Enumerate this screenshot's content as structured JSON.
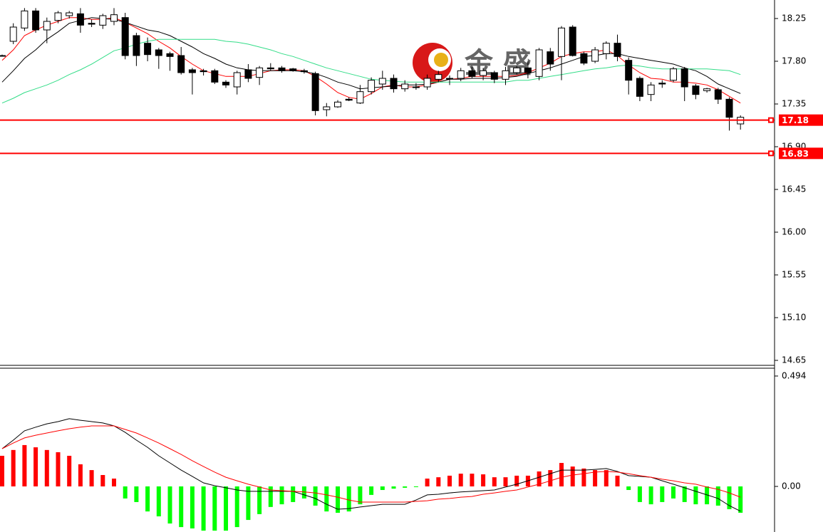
{
  "watermark": "金 盛",
  "chart_data": [
    {
      "type": "candlestick",
      "open": [
        17.86,
        18.01,
        18.15,
        18.33,
        18.13,
        18.23,
        18.28,
        18.3,
        18.2,
        18.18,
        18.22,
        18.26,
        18.07,
        17.99,
        17.92,
        17.88,
        17.86,
        17.71,
        17.7,
        17.7,
        17.58,
        17.53,
        17.71,
        17.63,
        17.73,
        17.73,
        17.72,
        17.7,
        17.67,
        17.29,
        17.32,
        17.4,
        17.36,
        17.48,
        17.56,
        17.62,
        17.51,
        17.53,
        17.53,
        17.61,
        17.62,
        17.62,
        17.7,
        17.65,
        17.68,
        17.61,
        17.68,
        17.73,
        17.64,
        17.9,
        17.85,
        18.16,
        17.88,
        17.8,
        17.88,
        17.99,
        17.81,
        17.62,
        17.45,
        17.57,
        17.6,
        17.72,
        17.54,
        17.49,
        17.5,
        17.4,
        17.14
      ],
      "high": [
        17.87,
        18.2,
        18.36,
        18.36,
        18.26,
        18.33,
        18.33,
        18.36,
        18.24,
        18.3,
        18.36,
        18.31,
        18.1,
        18.05,
        17.94,
        17.9,
        17.95,
        17.73,
        17.72,
        17.72,
        17.6,
        17.7,
        17.77,
        17.75,
        17.78,
        17.75,
        17.73,
        17.72,
        17.69,
        17.36,
        17.39,
        17.42,
        17.55,
        17.63,
        17.7,
        17.66,
        17.6,
        17.57,
        17.66,
        17.7,
        17.65,
        17.73,
        17.74,
        17.73,
        17.7,
        17.74,
        17.75,
        17.8,
        17.94,
        17.94,
        18.17,
        18.18,
        17.9,
        17.95,
        18.01,
        18.08,
        17.84,
        17.64,
        17.58,
        17.6,
        17.74,
        17.74,
        17.56,
        17.52,
        17.52,
        17.42,
        17.23
      ],
      "low": [
        17.85,
        17.98,
        18.12,
        18.1,
        17.99,
        18.2,
        18.25,
        18.1,
        18.16,
        18.14,
        18.18,
        17.82,
        17.75,
        17.8,
        17.72,
        17.7,
        17.66,
        17.45,
        17.65,
        17.56,
        17.52,
        17.45,
        17.58,
        17.55,
        17.7,
        17.68,
        17.69,
        17.67,
        17.23,
        17.22,
        17.31,
        17.38,
        17.35,
        17.45,
        17.5,
        17.47,
        17.48,
        17.5,
        17.5,
        17.58,
        17.55,
        17.59,
        17.62,
        17.6,
        17.57,
        17.55,
        17.66,
        17.62,
        17.6,
        17.7,
        17.6,
        17.85,
        17.76,
        17.78,
        17.82,
        17.8,
        17.45,
        17.38,
        17.38,
        17.52,
        17.58,
        17.38,
        17.4,
        17.47,
        17.35,
        17.07,
        17.08
      ],
      "close": [
        17.86,
        18.16,
        18.33,
        18.13,
        18.22,
        18.31,
        18.31,
        18.18,
        18.19,
        18.28,
        18.29,
        17.86,
        17.86,
        17.87,
        17.86,
        17.85,
        17.68,
        17.68,
        17.69,
        17.58,
        17.55,
        17.68,
        17.62,
        17.73,
        17.72,
        17.7,
        17.7,
        17.69,
        17.28,
        17.32,
        17.37,
        17.39,
        17.48,
        17.6,
        17.62,
        17.51,
        17.56,
        17.53,
        17.62,
        17.66,
        17.62,
        17.7,
        17.64,
        17.7,
        17.61,
        17.7,
        17.73,
        17.68,
        17.92,
        17.77,
        18.15,
        17.86,
        17.78,
        17.92,
        17.99,
        17.85,
        17.6,
        17.43,
        17.55,
        17.56,
        17.72,
        17.53,
        17.45,
        17.51,
        17.4,
        17.21,
        17.21
      ],
      "up_color": "#ffffff",
      "down_color": "#000000",
      "outline_color": "#000000",
      "series": [
        {
          "color": "#ff0000",
          "values": [
            17.81,
            17.92,
            18.07,
            18.13,
            18.18,
            18.22,
            18.26,
            18.26,
            18.24,
            18.24,
            18.26,
            18.21,
            18.15,
            18.09,
            18.01,
            17.94,
            17.85,
            17.77,
            17.7,
            17.67,
            17.64,
            17.64,
            17.64,
            17.67,
            17.7,
            17.71,
            17.71,
            17.7,
            17.64,
            17.56,
            17.47,
            17.42,
            17.4,
            17.46,
            17.53,
            17.55,
            17.53,
            17.53,
            17.55,
            17.58,
            17.61,
            17.62,
            17.64,
            17.64,
            17.64,
            17.64,
            17.65,
            17.68,
            17.73,
            17.78,
            17.85,
            17.88,
            17.9,
            17.9,
            17.92,
            17.86,
            17.76,
            17.68,
            17.62,
            17.61,
            17.58,
            17.58,
            17.57,
            17.55,
            17.5,
            17.43,
            17.36
          ]
        },
        {
          "color": "#000000",
          "values": [
            17.58,
            17.7,
            17.83,
            17.92,
            18.03,
            18.11,
            18.2,
            18.23,
            18.26,
            18.25,
            18.24,
            18.21,
            18.17,
            18.13,
            18.11,
            18.07,
            18.01,
            17.95,
            17.88,
            17.83,
            17.77,
            17.73,
            17.71,
            17.7,
            17.7,
            17.7,
            17.7,
            17.69,
            17.67,
            17.63,
            17.58,
            17.55,
            17.51,
            17.52,
            17.53,
            17.54,
            17.55,
            17.55,
            17.56,
            17.58,
            17.61,
            17.61,
            17.62,
            17.62,
            17.62,
            17.63,
            17.64,
            17.67,
            17.7,
            17.73,
            17.77,
            17.81,
            17.85,
            17.86,
            17.88,
            17.88,
            17.85,
            17.83,
            17.81,
            17.79,
            17.77,
            17.73,
            17.7,
            17.64,
            17.56,
            17.51,
            17.46
          ]
        },
        {
          "color": "#33dd88",
          "values": [
            17.36,
            17.41,
            17.47,
            17.51,
            17.55,
            17.6,
            17.66,
            17.71,
            17.77,
            17.84,
            17.91,
            17.94,
            17.98,
            18.01,
            18.03,
            18.03,
            18.03,
            18.03,
            18.03,
            18.03,
            18.01,
            18.0,
            17.98,
            17.95,
            17.92,
            17.88,
            17.85,
            17.81,
            17.77,
            17.73,
            17.7,
            17.67,
            17.64,
            17.61,
            17.6,
            17.59,
            17.58,
            17.58,
            17.58,
            17.58,
            17.58,
            17.58,
            17.58,
            17.58,
            17.58,
            17.58,
            17.6,
            17.6,
            17.62,
            17.64,
            17.66,
            17.68,
            17.7,
            17.72,
            17.73,
            17.75,
            17.76,
            17.75,
            17.73,
            17.72,
            17.72,
            17.72,
            17.72,
            17.72,
            17.71,
            17.7,
            17.66
          ]
        }
      ],
      "levels": [
        17.18,
        16.83
      ],
      "level_color": "#ff0000",
      "ylim": [
        14.5975,
        18.445
      ],
      "yticks": [
        18.25,
        {
          "value": 17.8,
          "label": "17.80"
        },
        17.35,
        {
          "value": 16.9,
          "label": "16.90"
        },
        16.45,
        {
          "value": 16.0,
          "label": "16.00"
        },
        15.55,
        {
          "value": 15.1,
          "label": "15.10"
        },
        14.65
      ]
    },
    {
      "type": "macd",
      "histogram": [
        0.137,
        0.163,
        0.185,
        0.175,
        0.163,
        0.153,
        0.137,
        0.099,
        0.073,
        0.051,
        0.035,
        -0.054,
        -0.07,
        -0.112,
        -0.134,
        -0.166,
        -0.182,
        -0.188,
        -0.198,
        -0.198,
        -0.198,
        -0.182,
        -0.15,
        -0.124,
        -0.092,
        -0.08,
        -0.07,
        -0.054,
        -0.086,
        -0.112,
        -0.118,
        -0.112,
        -0.08,
        -0.038,
        -0.016,
        -0.01,
        -0.006,
        -0.003,
        0.035,
        0.041,
        0.048,
        0.057,
        0.057,
        0.054,
        0.041,
        0.041,
        0.048,
        0.048,
        0.067,
        0.073,
        0.105,
        0.089,
        0.08,
        0.073,
        0.073,
        0.048,
        -0.016,
        -0.07,
        -0.08,
        -0.07,
        -0.054,
        -0.07,
        -0.08,
        -0.08,
        -0.086,
        -0.102,
        -0.118
      ],
      "up_color": "#ff0000",
      "down_color": "#00ff00",
      "series": [
        {
          "color": "#000000",
          "values": [
            0.169,
            0.207,
            0.249,
            0.265,
            0.28,
            0.29,
            0.303,
            0.296,
            0.29,
            0.284,
            0.271,
            0.242,
            0.207,
            0.175,
            0.137,
            0.105,
            0.073,
            0.045,
            0.016,
            0.003,
            -0.006,
            -0.016,
            -0.022,
            -0.022,
            -0.022,
            -0.022,
            -0.022,
            -0.038,
            -0.054,
            -0.08,
            -0.102,
            -0.099,
            -0.092,
            -0.086,
            -0.08,
            -0.08,
            -0.08,
            -0.061,
            -0.038,
            -0.035,
            -0.029,
            -0.025,
            -0.022,
            -0.019,
            -0.016,
            -0.003,
            0.01,
            0.025,
            0.041,
            0.057,
            0.073,
            0.073,
            0.073,
            0.076,
            0.08,
            0.067,
            0.048,
            0.045,
            0.041,
            0.025,
            0.01,
            -0.006,
            -0.022,
            -0.038,
            -0.054,
            -0.086,
            -0.111
          ]
        },
        {
          "color": "#ff0000",
          "values": [
            0.169,
            0.194,
            0.217,
            0.229,
            0.239,
            0.249,
            0.258,
            0.265,
            0.271,
            0.271,
            0.271,
            0.255,
            0.239,
            0.217,
            0.194,
            0.169,
            0.143,
            0.115,
            0.089,
            0.064,
            0.041,
            0.025,
            0.01,
            -0.003,
            -0.016,
            -0.019,
            -0.022,
            -0.025,
            -0.029,
            -0.038,
            -0.048,
            -0.061,
            -0.07,
            -0.07,
            -0.07,
            -0.07,
            -0.07,
            -0.067,
            -0.064,
            -0.057,
            -0.054,
            -0.048,
            -0.045,
            -0.035,
            -0.029,
            -0.022,
            -0.016,
            -0.003,
            0.01,
            0.025,
            0.041,
            0.051,
            0.057,
            0.064,
            0.067,
            0.064,
            0.057,
            0.048,
            0.041,
            0.032,
            0.025,
            0.016,
            0.01,
            -0.003,
            -0.013,
            -0.029,
            -0.048
          ]
        }
      ],
      "ylim": [
        -0.204,
        0.529
      ],
      "yticks": [
        0.494,
        {
          "value": 0,
          "label": "0.00"
        }
      ]
    }
  ]
}
